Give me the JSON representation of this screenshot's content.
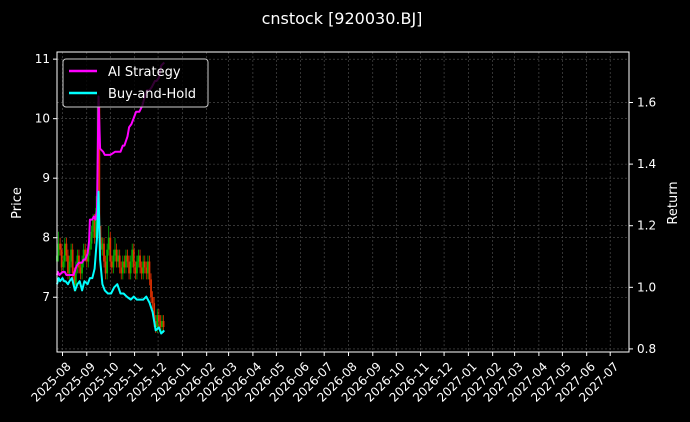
{
  "chart_data": {
    "type": "line",
    "title": "cnstock [920030.BJ]",
    "ylabel": "Price",
    "y2label": "Return",
    "ylim": [
      6.08,
      11.12
    ],
    "y2lim": [
      0.79,
      1.764
    ],
    "yticks": [
      "7",
      "8",
      "9",
      "10",
      "11"
    ],
    "ytick_values": [
      7,
      8,
      9,
      10,
      11
    ],
    "y2ticks": [
      "0.8",
      "1.0",
      "1.2",
      "1.4",
      "1.6"
    ],
    "y2tick_values": [
      0.8,
      1.0,
      1.2,
      1.4,
      1.6
    ],
    "xlim": [
      "2025-07-25",
      "2027-07-25"
    ],
    "xticks": [
      "2025-08",
      "2025-09",
      "2025-10",
      "2025-11",
      "2025-12",
      "2026-01",
      "2026-02",
      "2026-03",
      "2026-04",
      "2026-05",
      "2026-06",
      "2026-07",
      "2026-08",
      "2026-09",
      "2026-10",
      "2026-11",
      "2026-12",
      "2027-01",
      "2027-02",
      "2027-03",
      "2027-04",
      "2027-05",
      "2027-06",
      "2027-07"
    ],
    "grid": true,
    "legend_position": "top-left",
    "colors": {
      "ai": "#ff00ff",
      "bh": "#00ffff",
      "up": "#00b000",
      "down": "#e03000",
      "grid": "#555555",
      "axes": "#ffffff"
    },
    "series": [
      {
        "name": "AI Strategy",
        "axis": "right",
        "x": [
          "2025-07-25",
          "2025-07-26",
          "2025-07-28",
          "2025-08-01",
          "2025-08-04",
          "2025-08-06",
          "2025-08-08",
          "2025-08-12",
          "2025-08-15",
          "2025-08-19",
          "2025-08-22",
          "2025-08-26",
          "2025-08-28",
          "2025-08-30",
          "2025-09-02",
          "2025-09-04",
          "2025-09-05",
          "2025-09-08",
          "2025-09-10",
          "2025-09-12",
          "2025-09-14",
          "2025-09-16",
          "2025-09-18",
          "2025-09-22",
          "2025-09-24",
          "2025-09-27",
          "2025-10-01",
          "2025-10-07",
          "2025-10-11",
          "2025-10-14",
          "2025-10-17",
          "2025-10-19",
          "2025-10-23",
          "2025-10-25",
          "2025-10-28",
          "2025-10-31",
          "2025-11-03",
          "2025-11-07",
          "2025-11-11",
          "2025-11-13",
          "2025-11-17",
          "2025-11-20",
          "2025-11-23",
          "2025-11-27",
          "2025-11-29",
          "2025-12-02",
          "2025-12-05",
          "2025-12-09"
        ],
        "values": [
          1.04,
          1.05,
          1.04,
          1.05,
          1.05,
          1.04,
          1.04,
          1.04,
          1.04,
          1.07,
          1.08,
          1.08,
          1.09,
          1.09,
          1.11,
          1.15,
          1.22,
          1.22,
          1.23,
          1.22,
          1.25,
          1.62,
          1.45,
          1.44,
          1.43,
          1.43,
          1.43,
          1.44,
          1.44,
          1.44,
          1.46,
          1.46,
          1.49,
          1.52,
          1.53,
          1.55,
          1.57,
          1.57,
          1.59,
          1.61,
          1.64,
          1.64,
          1.65,
          1.67,
          1.67,
          1.68,
          1.72,
          1.73
        ]
      },
      {
        "name": "Buy-and-Hold",
        "axis": "right",
        "x": [
          "2025-07-25",
          "2025-07-27",
          "2025-07-29",
          "2025-08-01",
          "2025-08-03",
          "2025-08-05",
          "2025-08-08",
          "2025-08-10",
          "2025-08-13",
          "2025-08-17",
          "2025-08-20",
          "2025-08-23",
          "2025-08-26",
          "2025-08-29",
          "2025-09-02",
          "2025-09-05",
          "2025-09-08",
          "2025-09-11",
          "2025-09-14",
          "2025-09-16",
          "2025-09-18",
          "2025-09-21",
          "2025-09-24",
          "2025-09-28",
          "2025-10-02",
          "2025-10-06",
          "2025-10-10",
          "2025-10-14",
          "2025-10-18",
          "2025-10-22",
          "2025-10-27",
          "2025-10-31",
          "2025-11-04",
          "2025-11-08",
          "2025-11-12",
          "2025-11-16",
          "2025-11-20",
          "2025-11-24",
          "2025-11-28",
          "2025-12-02",
          "2025-12-05",
          "2025-12-09"
        ],
        "values": [
          1.01,
          1.03,
          1.02,
          1.03,
          1.02,
          1.02,
          1.01,
          1.02,
          1.03,
          0.99,
          1.01,
          1.02,
          0.99,
          1.02,
          1.01,
          1.03,
          1.03,
          1.06,
          1.16,
          1.31,
          1.09,
          1.01,
          0.99,
          0.98,
          0.98,
          1.0,
          1.01,
          0.98,
          0.98,
          0.97,
          0.96,
          0.97,
          0.96,
          0.96,
          0.96,
          0.97,
          0.95,
          0.92,
          0.86,
          0.87,
          0.85,
          0.86
        ]
      },
      {
        "name": "Price",
        "axis": "left",
        "type": "candlestick",
        "x": [
          "2025-07-25",
          "2025-07-27",
          "2025-07-29",
          "2025-07-31",
          "2025-08-02",
          "2025-08-04",
          "2025-08-06",
          "2025-08-08",
          "2025-08-10",
          "2025-08-12",
          "2025-08-14",
          "2025-08-16",
          "2025-08-18",
          "2025-08-20",
          "2025-08-22",
          "2025-08-24",
          "2025-08-26",
          "2025-08-28",
          "2025-08-30",
          "2025-09-01",
          "2025-09-03",
          "2025-09-05",
          "2025-09-07",
          "2025-09-09",
          "2025-09-11",
          "2025-09-13",
          "2025-09-15",
          "2025-09-17",
          "2025-09-19",
          "2025-09-21",
          "2025-09-23",
          "2025-09-25",
          "2025-09-27",
          "2025-09-29",
          "2025-10-01",
          "2025-10-03",
          "2025-10-05",
          "2025-10-07",
          "2025-10-09",
          "2025-10-11",
          "2025-10-13",
          "2025-10-15",
          "2025-10-17",
          "2025-10-19",
          "2025-10-21",
          "2025-10-23",
          "2025-10-25",
          "2025-10-27",
          "2025-10-29",
          "2025-10-31",
          "2025-11-02",
          "2025-11-04",
          "2025-11-06",
          "2025-11-08",
          "2025-11-10",
          "2025-11-12",
          "2025-11-14",
          "2025-11-16",
          "2025-11-18",
          "2025-11-20",
          "2025-11-22",
          "2025-11-24",
          "2025-11-26",
          "2025-11-28",
          "2025-11-30",
          "2025-12-02",
          "2025-12-04",
          "2025-12-06",
          "2025-12-08"
        ],
        "open": [
          7.6,
          7.7,
          7.9,
          7.8,
          7.5,
          7.6,
          7.9,
          7.7,
          7.4,
          7.6,
          7.8,
          7.4,
          7.2,
          7.5,
          7.7,
          7.5,
          7.4,
          7.6,
          7.8,
          7.7,
          7.6,
          7.8,
          7.9,
          8.1,
          8.3,
          8.0,
          8.5,
          10.2,
          8.0,
          7.8,
          7.9,
          7.6,
          7.4,
          7.8,
          8.0,
          7.6,
          7.5,
          7.7,
          7.8,
          7.6,
          7.7,
          7.5,
          7.4,
          7.6,
          7.5,
          7.7,
          7.6,
          7.4,
          7.6,
          7.8,
          7.5,
          7.4,
          7.6,
          7.7,
          7.5,
          7.4,
          7.6,
          7.5,
          7.4,
          7.6,
          7.3,
          7.0,
          6.9,
          6.6,
          6.5,
          6.7,
          6.6,
          6.5,
          6.6
        ],
        "close": [
          7.7,
          7.9,
          7.8,
          7.5,
          7.6,
          7.9,
          7.7,
          7.4,
          7.6,
          7.8,
          7.4,
          7.2,
          7.5,
          7.7,
          7.5,
          7.4,
          7.6,
          7.8,
          7.7,
          7.6,
          7.8,
          7.9,
          8.1,
          8.3,
          8.0,
          8.5,
          10.2,
          8.0,
          7.8,
          7.9,
          7.6,
          7.4,
          7.8,
          8.0,
          7.6,
          7.5,
          7.7,
          7.8,
          7.6,
          7.7,
          7.5,
          7.4,
          7.6,
          7.5,
          7.7,
          7.6,
          7.4,
          7.6,
          7.8,
          7.5,
          7.4,
          7.6,
          7.7,
          7.5,
          7.4,
          7.6,
          7.5,
          7.4,
          7.6,
          7.3,
          7.0,
          6.9,
          6.6,
          6.5,
          6.7,
          6.6,
          6.5,
          6.6,
          6.5
        ],
        "high": [
          7.8,
          8.1,
          8.0,
          7.9,
          7.7,
          8.0,
          8.0,
          7.8,
          7.7,
          7.9,
          7.9,
          7.5,
          7.6,
          7.8,
          7.8,
          7.6,
          7.7,
          7.9,
          7.9,
          7.8,
          7.9,
          8.0,
          8.2,
          8.4,
          8.4,
          8.7,
          10.3,
          10.3,
          8.2,
          8.0,
          8.0,
          7.7,
          7.9,
          8.2,
          8.1,
          7.7,
          7.8,
          8.0,
          7.9,
          7.8,
          7.8,
          7.6,
          7.7,
          7.7,
          7.8,
          7.8,
          7.7,
          7.7,
          7.9,
          7.9,
          7.6,
          7.7,
          7.8,
          7.8,
          7.6,
          7.7,
          7.7,
          7.6,
          7.7,
          7.7,
          7.4,
          7.1,
          7.0,
          6.7,
          6.8,
          6.8,
          6.7,
          6.7,
          6.7
        ],
        "low": [
          7.5,
          7.6,
          7.7,
          7.4,
          7.4,
          7.5,
          7.6,
          7.3,
          7.3,
          7.5,
          7.3,
          7.1,
          7.1,
          7.4,
          7.4,
          7.3,
          7.3,
          7.5,
          7.6,
          7.5,
          7.5,
          7.7,
          7.8,
          8.0,
          7.9,
          7.9,
          8.4,
          7.9,
          7.7,
          7.7,
          7.5,
          7.3,
          7.3,
          7.7,
          7.5,
          7.4,
          7.4,
          7.6,
          7.5,
          7.5,
          7.4,
          7.3,
          7.3,
          7.4,
          7.4,
          7.5,
          7.3,
          7.3,
          7.5,
          7.4,
          7.3,
          7.3,
          7.5,
          7.4,
          7.3,
          7.3,
          7.4,
          7.3,
          7.3,
          7.2,
          6.9,
          6.8,
          6.5,
          6.4,
          6.4,
          6.5,
          6.4,
          6.4,
          6.4
        ]
      }
    ]
  }
}
